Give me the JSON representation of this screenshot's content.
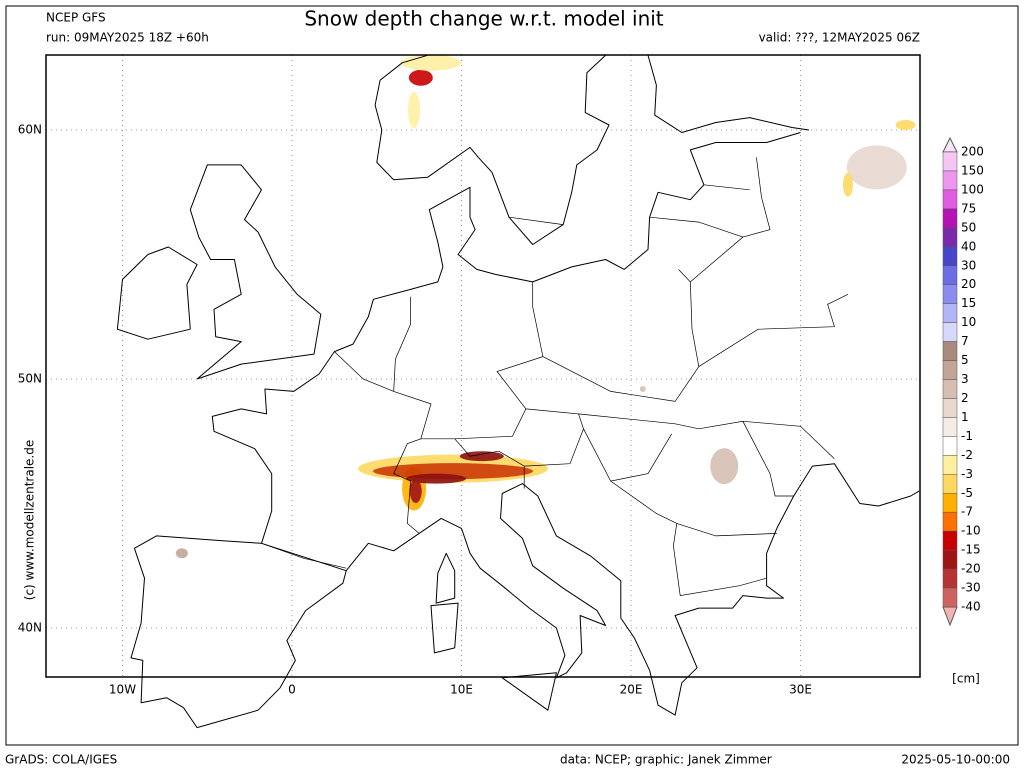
{
  "header": {
    "model": "NCEP GFS",
    "run": "run: 09MAY2025 18Z +60h",
    "title": "Snow depth change w.r.t. model init",
    "valid": "valid: ???, 12MAY2025 06Z"
  },
  "axes": {
    "lat_labels": [
      "60N",
      "50N",
      "40N"
    ],
    "lon_labels": [
      "10W",
      "0",
      "10E",
      "20E",
      "30E"
    ]
  },
  "watermark": "(c) www.modellzentrale.de",
  "colorbar": {
    "labels": [
      "200",
      "150",
      "100",
      "75",
      "50",
      "40",
      "30",
      "20",
      "15",
      "10",
      "7",
      "5",
      "3",
      "2",
      "1",
      "-1",
      "-2",
      "-3",
      "-5",
      "-7",
      "-10",
      "-15",
      "-20",
      "-30",
      "-40"
    ],
    "colors": [
      "#f5c6f5",
      "#ee96ee",
      "#e15ce1",
      "#b412b4",
      "#7a2aa8",
      "#4646c8",
      "#6c6ce4",
      "#8c8cf0",
      "#b4b4f8",
      "#d8d8fc",
      "#a98a7c",
      "#c2a595",
      "#d6bfb2",
      "#e8d8cf",
      "#f4ece6",
      "#ffffff",
      "#fff0a0",
      "#ffd860",
      "#ffb000",
      "#ff7000",
      "#c80000",
      "#a01414",
      "#b83232",
      "#cc6262",
      "#e38b8b"
    ],
    "unit": "[cm]"
  },
  "footer": {
    "left": "GrADS: COLA/IGES",
    "middle": "data: NCEP; graphic: Janek Zimmer",
    "right": "2025-05-10-00:00"
  }
}
